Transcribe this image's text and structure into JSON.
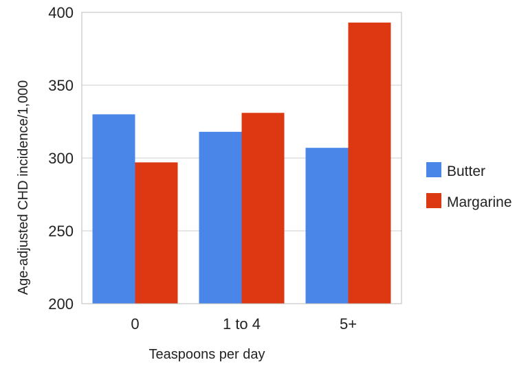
{
  "chart_data": {
    "type": "bar",
    "title": "",
    "xlabel": "Teaspoons per day",
    "ylabel": "Age-adjusted CHD incidence/1,000",
    "categories": [
      "0",
      "1 to 4",
      "5+"
    ],
    "series": [
      {
        "name": "Butter",
        "values": [
          330,
          318,
          307
        ],
        "color": "#4a86e8"
      },
      {
        "name": "Margarine",
        "values": [
          297,
          331,
          393
        ],
        "color": "#dc3912"
      }
    ],
    "ylim": [
      200,
      400
    ],
    "yticks": [
      200,
      250,
      300,
      350,
      400
    ],
    "grid": true,
    "legend_position": "right"
  }
}
